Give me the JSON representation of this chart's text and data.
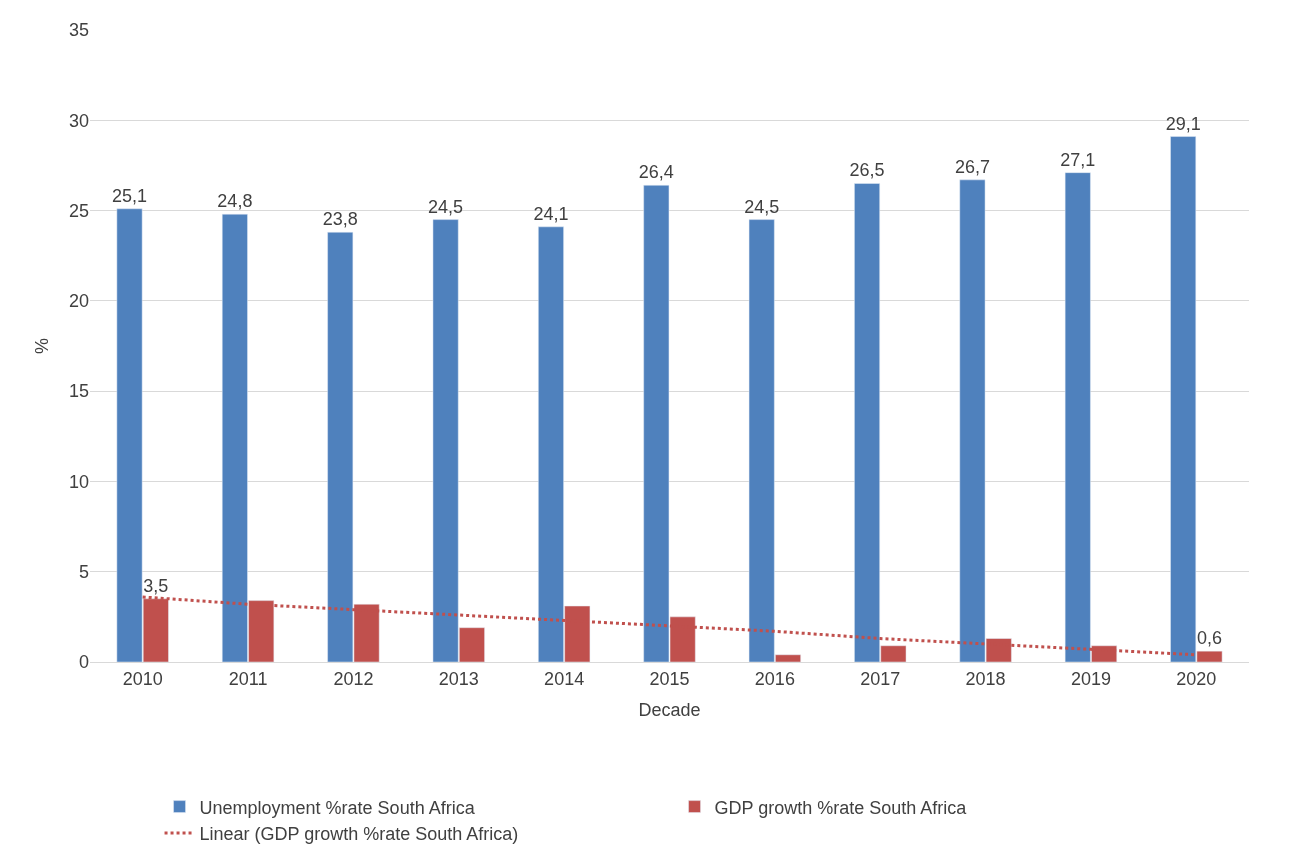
{
  "chart_data": {
    "type": "bar",
    "xlabel": "Decade",
    "ylabel": "%",
    "categories": [
      "2010",
      "2011",
      "2012",
      "2013",
      "2014",
      "2015",
      "2016",
      "2017",
      "2018",
      "2019",
      "2020"
    ],
    "series": [
      {
        "name": "Unemployment %rate South Africa",
        "color": "#4f81bd",
        "values": [
          25.1,
          24.8,
          23.8,
          24.5,
          24.1,
          26.4,
          24.5,
          26.5,
          26.7,
          27.1,
          29.1
        ],
        "value_labels": [
          "25,1",
          "24,8",
          "23,8",
          "24,5",
          "24,1",
          "26,4",
          "24,5",
          "26,5",
          "26,7",
          "27,1",
          "29,1"
        ]
      },
      {
        "name": "GDP growth %rate South Africa",
        "color": "#c0504d",
        "values": [
          3.5,
          3.4,
          3.2,
          1.9,
          3.1,
          2.5,
          0.4,
          0.9,
          1.3,
          0.9,
          0.6
        ],
        "value_labels": [
          "3,5",
          null,
          null,
          null,
          null,
          null,
          null,
          null,
          null,
          null,
          "0,6"
        ]
      },
      {
        "name": "Linear (GDP growth %rate South Africa)",
        "type": "line",
        "line_style": "dotted",
        "color": "#c0504d",
        "values": [
          3.6,
          3.2,
          2.9,
          2.6,
          2.3,
          2.0,
          1.7,
          1.3,
          1.0,
          0.7,
          0.4
        ]
      }
    ],
    "ylim": [
      0,
      35
    ],
    "yticks": [
      0,
      5,
      10,
      15,
      20,
      25,
      30,
      35
    ],
    "grid": "y",
    "legend": "bottom"
  }
}
